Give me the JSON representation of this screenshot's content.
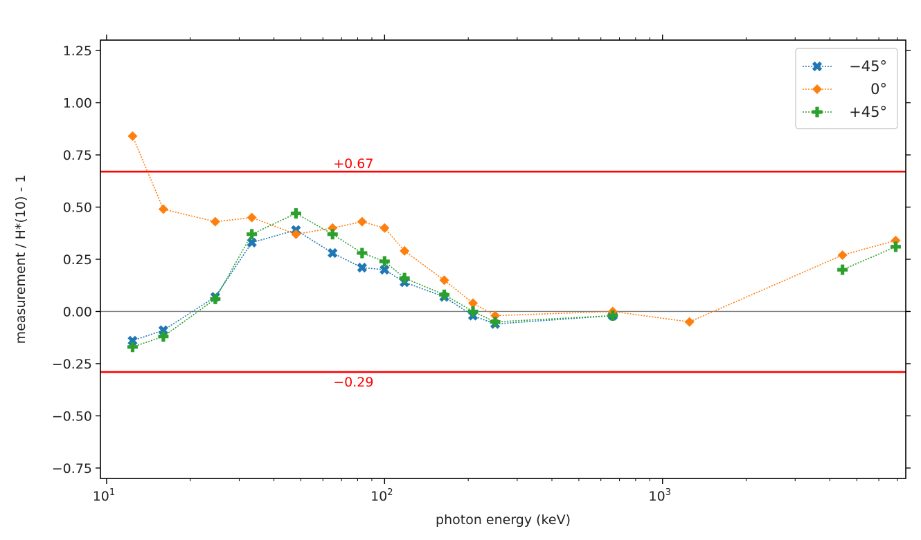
{
  "chart_data": {
    "type": "line",
    "x_scale": "log",
    "xlabel": "photon energy (keV)",
    "ylabel": "measurement / H*(10) - 1",
    "xlim": [
      9.5,
      7500
    ],
    "ylim": [
      -0.8,
      1.3
    ],
    "x_ticks": [
      {
        "value": 10,
        "base": "10",
        "exp": "1"
      },
      {
        "value": 100,
        "base": "10",
        "exp": "2"
      },
      {
        "value": 1000,
        "base": "10",
        "exp": "3"
      }
    ],
    "y_ticks": [
      {
        "value": 1.25,
        "label": "1.25"
      },
      {
        "value": 1.0,
        "label": "1.00"
      },
      {
        "value": 0.75,
        "label": "0.75"
      },
      {
        "value": 0.5,
        "label": "0.50"
      },
      {
        "value": 0.25,
        "label": "0.25"
      },
      {
        "value": 0.0,
        "label": "0.00"
      },
      {
        "value": -0.25,
        "label": "−0.25"
      },
      {
        "value": -0.5,
        "label": "−0.50"
      },
      {
        "value": -0.75,
        "label": "−0.75"
      }
    ],
    "zero_line": {
      "value": 0.0,
      "color": "#808080"
    },
    "limit_lines": [
      {
        "value": 0.67,
        "label": "+0.67",
        "color": "#ff0000"
      },
      {
        "value": -0.29,
        "label": "−0.29",
        "color": "#ff0000"
      }
    ],
    "legend_position": "top-right",
    "series": [
      {
        "name": "−45°",
        "color": "#1f77b4",
        "marker": "X",
        "x": [
          12.4,
          16,
          24.6,
          33.3,
          48,
          65,
          83,
          100,
          118,
          164,
          208,
          250,
          662
        ],
        "y": [
          -0.14,
          -0.09,
          0.07,
          0.33,
          0.39,
          0.28,
          0.21,
          0.2,
          0.14,
          0.07,
          -0.02,
          -0.06,
          -0.02
        ]
      },
      {
        "name": "0°",
        "color": "#ff7f0e",
        "marker": "D",
        "x": [
          12.4,
          16,
          24.6,
          33.3,
          48,
          65,
          83,
          100,
          118,
          164,
          208,
          250,
          662,
          1250,
          4440,
          6900
        ],
        "y": [
          0.84,
          0.49,
          0.43,
          0.45,
          0.37,
          0.4,
          0.43,
          0.4,
          0.29,
          0.15,
          0.04,
          -0.02,
          0.0,
          -0.05,
          0.27,
          0.34
        ]
      },
      {
        "name": "+45°",
        "color": "#2ca02c",
        "marker": "P",
        "x": [
          12.4,
          16,
          24.6,
          33.3,
          48,
          65,
          83,
          100,
          118,
          164,
          208,
          250,
          662,
          null,
          4440,
          6900
        ],
        "y": [
          -0.17,
          -0.12,
          0.06,
          0.37,
          0.47,
          0.37,
          0.28,
          0.24,
          0.16,
          0.08,
          0.0,
          -0.05,
          -0.02,
          null,
          0.2,
          0.31
        ]
      }
    ]
  }
}
